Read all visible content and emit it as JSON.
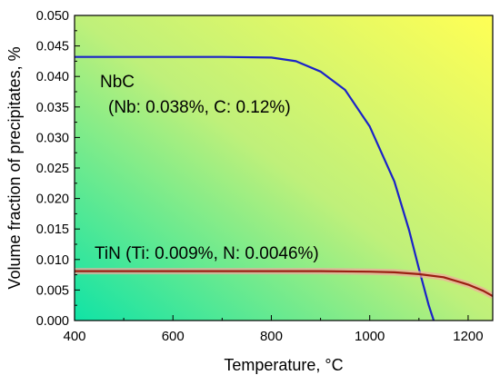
{
  "colors": {
    "nbc_line": "#1a23c8",
    "tin_line": "#9a1f12",
    "tin_highlight": "#f4a6a0",
    "bg_top_right": "#ffff55",
    "bg_middle": "#bff07a",
    "bg_bottom_left": "#10e3a6"
  },
  "chart_data": {
    "type": "line",
    "title": "",
    "xlabel": "Temperature, °C",
    "ylabel": "Volume fraction of precipitates, %",
    "xlim": [
      400,
      1250
    ],
    "ylim": [
      0.0,
      0.05
    ],
    "xticks": [
      "400",
      "600",
      "800",
      "1000",
      "1200"
    ],
    "yticks": [
      "0.000",
      "0.005",
      "0.010",
      "0.015",
      "0.020",
      "0.025",
      "0.030",
      "0.035",
      "0.040",
      "0.045",
      "0.050"
    ],
    "grid": false,
    "series": [
      {
        "name": "NbC",
        "color": "#1a23c8",
        "x": [
          400,
          500,
          600,
          700,
          800,
          850,
          900,
          950,
          1000,
          1050,
          1080,
          1100,
          1120,
          1130
        ],
        "y": [
          0.0432,
          0.0432,
          0.0432,
          0.0432,
          0.0431,
          0.0425,
          0.0408,
          0.0378,
          0.0318,
          0.0228,
          0.0148,
          0.0085,
          0.0025,
          0.0
        ]
      },
      {
        "name": "TiN",
        "color": "#9a1f12",
        "x": [
          400,
          500,
          600,
          700,
          800,
          900,
          1000,
          1050,
          1100,
          1150,
          1200,
          1230,
          1250
        ],
        "y": [
          0.0081,
          0.0081,
          0.0081,
          0.0081,
          0.0081,
          0.0081,
          0.008,
          0.0079,
          0.0076,
          0.0071,
          0.0059,
          0.0049,
          0.004
        ]
      }
    ],
    "annotations": {
      "nbc_name": "NbC",
      "nbc_composition": "(Nb: 0.038%, C: 0.12%)",
      "tin_label": "TiN (Ti: 0.009%, N: 0.0046%)"
    }
  }
}
